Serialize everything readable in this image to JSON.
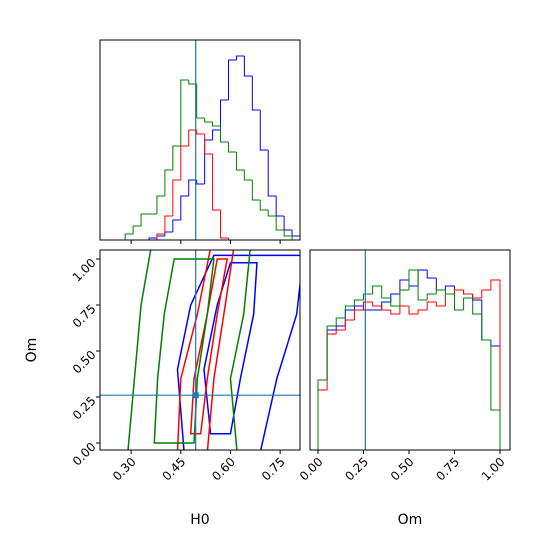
{
  "chart_data": [
    {
      "type": "histogram",
      "bins": [
        0.21,
        0.234,
        0.258,
        0.282,
        0.306,
        0.33,
        0.354,
        0.378,
        0.402,
        0.426,
        0.45,
        0.474,
        0.498,
        0.522,
        0.546,
        0.57,
        0.594,
        0.618,
        0.642,
        0.666,
        0.69,
        0.714,
        0.738,
        0.762,
        0.786,
        0.81
      ],
      "series": [
        {
          "color": "#0000ff",
          "values": [
            0,
            0,
            0,
            0,
            0,
            0,
            0.01,
            0.02,
            0.04,
            0.1,
            0.22,
            0.3,
            0.28,
            0.5,
            0.55,
            0.7,
            0.9,
            0.92,
            0.82,
            0.65,
            0.45,
            0.22,
            0.12,
            0.05,
            0.02
          ]
        },
        {
          "color": "#ff0000",
          "values": [
            0,
            0,
            0,
            0,
            0,
            0,
            0,
            0.03,
            0.12,
            0.3,
            0.47,
            0.55,
            0.53,
            0.43,
            0.15,
            0.01,
            0,
            0,
            0,
            0,
            0,
            0,
            0,
            0,
            0
          ]
        },
        {
          "color": "#008000",
          "values": [
            0,
            0,
            0,
            0.03,
            0.07,
            0.13,
            0.13,
            0.22,
            0.35,
            0.47,
            0.8,
            0.78,
            0.61,
            0.59,
            0.57,
            0.49,
            0.44,
            0.35,
            0.3,
            0.2,
            0.15,
            0.12,
            0.05,
            0.02,
            0
          ]
        }
      ],
      "xlim": [
        0.206,
        0.81
      ],
      "ylim": [
        0,
        1
      ],
      "truth": 0.495,
      "truth_color": "#1f77b4"
    },
    {
      "type": "contour",
      "xlabel": "H0",
      "ylabel": "Om",
      "xlim": [
        0.206,
        0.81
      ],
      "ylim": [
        -0.038,
        1.049
      ],
      "xticks": [
        {
          "value": 0.3,
          "label": "0.30"
        },
        {
          "value": 0.45,
          "label": "0.45"
        },
        {
          "value": 0.6,
          "label": "0.60"
        },
        {
          "value": 0.75,
          "label": "0.75"
        }
      ],
      "yticks": [
        {
          "value": 0,
          "label": "0.00"
        },
        {
          "value": 0.25,
          "label": "0.25"
        },
        {
          "value": 0.5,
          "label": "0.50"
        },
        {
          "value": 0.75,
          "label": "0.75"
        },
        {
          "value": 1,
          "label": "1.00"
        }
      ],
      "series": [
        {
          "color": "#0000ff",
          "contours": [
            {
              "x": [
                0.46,
                0.44,
                0.48,
                0.55,
                0.82,
                0.8,
                0.74,
                0.69
              ],
              "y": [
                -0.05,
                0.4,
                0.75,
                1.02,
                1.02,
                0.7,
                0.35,
                -0.05
              ]
            },
            {
              "x": [
                0.54,
                0.52,
                0.56,
                0.6,
                0.68,
                0.67,
                0.63,
                0.6
              ],
              "y": [
                0.05,
                0.4,
                0.75,
                0.98,
                0.98,
                0.7,
                0.35,
                0.05
              ]
            }
          ]
        },
        {
          "color": "#ff0000",
          "contours": [
            {
              "x": [
                0.44,
                0.45,
                0.5,
                0.54,
                0.61,
                0.58,
                0.55,
                0.53
              ],
              "y": [
                -0.05,
                0.35,
                0.7,
                1.06,
                1.06,
                0.7,
                0.35,
                -0.05
              ]
            },
            {
              "x": [
                0.48,
                0.49,
                0.53,
                0.56,
                0.59,
                0.56,
                0.53,
                0.51
              ],
              "y": [
                0.05,
                0.35,
                0.7,
                1.0,
                1.0,
                0.7,
                0.35,
                0.05
              ]
            }
          ]
        },
        {
          "color": "#008000",
          "contours": [
            {
              "x": [
                0.29,
                0.31,
                0.33,
                0.36,
                0.66,
                0.64,
                0.6,
                0.62
              ],
              "y": [
                -0.05,
                0.35,
                0.75,
                1.06,
                1.06,
                0.7,
                0.35,
                -0.05
              ]
            },
            {
              "x": [
                0.37,
                0.38,
                0.4,
                0.43,
                0.55,
                0.53,
                0.5,
                0.49
              ],
              "y": [
                0.0,
                0.35,
                0.7,
                1.0,
                1.0,
                0.7,
                0.35,
                0.0
              ]
            }
          ]
        }
      ],
      "truth": {
        "x": 0.495,
        "y": 0.26
      },
      "truth_color": "#1f77b4"
    },
    {
      "type": "histogram",
      "xlabel": "Om",
      "bins": [
        0,
        0.05,
        0.1,
        0.15,
        0.2,
        0.25,
        0.3,
        0.35,
        0.4,
        0.45,
        0.5,
        0.55,
        0.6,
        0.65,
        0.7,
        0.75,
        0.8,
        0.85,
        0.9,
        0.95,
        1.0
      ],
      "series": [
        {
          "color": "#0000ff",
          "values": [
            0.35,
            0.6,
            0.62,
            0.7,
            0.72,
            0.7,
            0.7,
            0.74,
            0.78,
            0.85,
            0.82,
            0.9,
            0.86,
            0.8,
            0.82,
            0.8,
            0.78,
            0.75,
            0.55,
            0.52
          ]
        },
        {
          "color": "#ff0000",
          "values": [
            0.3,
            0.58,
            0.6,
            0.65,
            0.7,
            0.74,
            0.72,
            0.7,
            0.68,
            0.72,
            0.68,
            0.7,
            0.74,
            0.72,
            0.78,
            0.8,
            0.78,
            0.76,
            0.8,
            0.85
          ]
        },
        {
          "color": "#008000",
          "values": [
            0.35,
            0.62,
            0.66,
            0.72,
            0.75,
            0.78,
            0.82,
            0.76,
            0.72,
            0.8,
            0.9,
            0.75,
            0.78,
            0.8,
            0.78,
            0.7,
            0.76,
            0.68,
            0.55,
            0.2
          ]
        }
      ],
      "xlim": [
        -0.044,
        1.055
      ],
      "ylim": [
        0,
        1
      ],
      "xticks": [
        {
          "value": 0,
          "label": "0.00"
        },
        {
          "value": 0.25,
          "label": "0.25"
        },
        {
          "value": 0.5,
          "label": "0.50"
        },
        {
          "value": 0.75,
          "label": "0.75"
        },
        {
          "value": 1,
          "label": "1.00"
        }
      ],
      "truth": 0.26,
      "truth_color": "#1f77b4"
    }
  ]
}
